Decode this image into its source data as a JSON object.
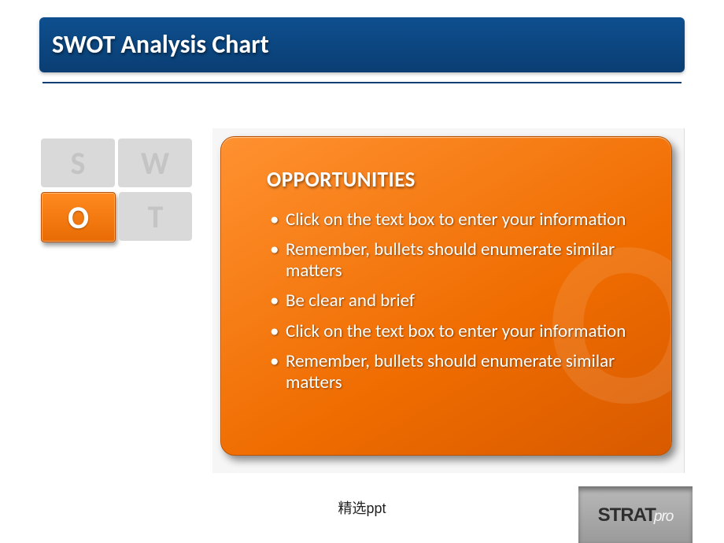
{
  "title": "SWOT Analysis Chart",
  "colors": {
    "title_bar_top": "#0e4f8f",
    "title_bar_bottom": "#0a3e73",
    "rule": "#0a3e73",
    "inactive_cell_bg": "#d9d9d9",
    "inactive_cell_text": "#c4c4c4",
    "active_cell_top": "#ff8a1f",
    "active_cell_bottom": "#e86b04",
    "panel_gradient_start": "#ff9130",
    "panel_gradient_mid": "#ef6c00",
    "panel_gradient_end": "#d85a00",
    "panel_border": "#b85200",
    "watermark": "rgba(255,255,255,0.10)",
    "panel_wrap_bg": "#f6f6f6",
    "text_on_orange": "#ffffff",
    "logo_bg_top": "#b8b8b8",
    "logo_bg_bottom": "#9a9a9a",
    "logo_text": "#2e2e2e",
    "logo_pro": "#f5f5f5"
  },
  "swot": {
    "cells": [
      {
        "letter": "S",
        "active": false
      },
      {
        "letter": "W",
        "active": false
      },
      {
        "letter": "O",
        "active": true
      },
      {
        "letter": "T",
        "active": false
      }
    ],
    "active_index": 2
  },
  "panel": {
    "heading": "OPPORTUNITIES",
    "watermark_letter": "O",
    "bullets": [
      "Click on the text box to enter your information",
      "Remember, bullets should enumerate similar matters",
      "Be clear and brief",
      "Click on the text box to enter your information",
      "Remember, bullets should enumerate similar matters"
    ],
    "heading_fontsize_pt": 20,
    "bullet_fontsize_pt": 17
  },
  "footer": {
    "caption": "精选ppt",
    "logo_main": "STRAT",
    "logo_suffix": "pro"
  }
}
